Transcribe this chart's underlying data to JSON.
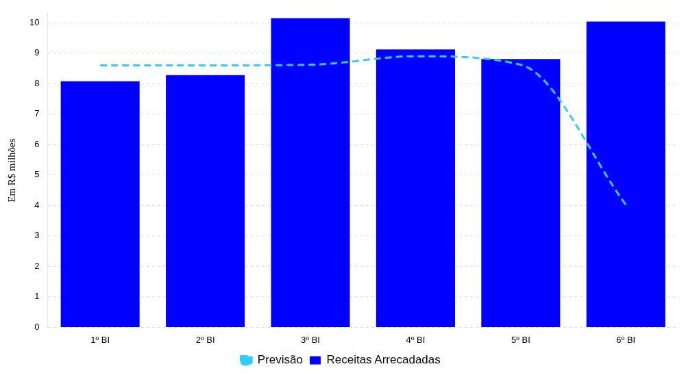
{
  "chart_data": {
    "type": "bar",
    "ylabel": "Em R$ milhões",
    "categories": [
      "1º BI",
      "2º BI",
      "3º BI",
      "4º BI",
      "5º BI",
      "6º BI"
    ],
    "series": [
      {
        "name": "Previsão",
        "type": "line",
        "color": "#33ccff",
        "line_style": "dashed",
        "values": [
          8.6,
          8.6,
          8.62,
          8.9,
          8.62,
          4.03
        ]
      },
      {
        "name": "Receitas Arrecadadas",
        "color": "#0000ff",
        "values": [
          8.08,
          8.28,
          10.15,
          9.12,
          8.81,
          10.04
        ]
      }
    ],
    "ylim": [
      0,
      10.3
    ],
    "yticks": [
      0,
      1,
      2,
      3,
      4,
      5,
      6,
      7,
      8,
      9,
      10
    ],
    "grid": "y",
    "legend": "bottom",
    "marker": "none"
  }
}
